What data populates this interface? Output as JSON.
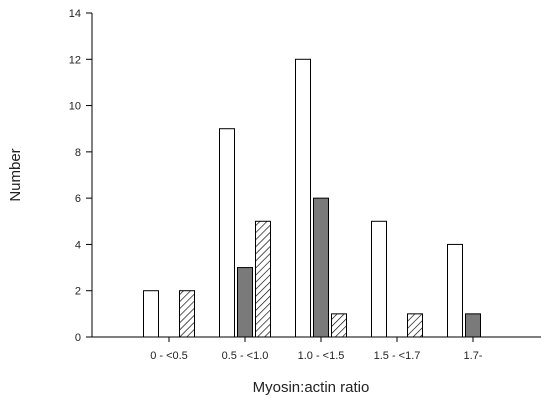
{
  "chart_data": {
    "type": "bar",
    "title": "",
    "xlabel": "Myosin:actin ratio",
    "ylabel": "Number",
    "categories": [
      "0 - <0.5",
      "0.5 - <1.0",
      "1.0 - <1.5",
      "1.5 - <1.7",
      "1.7-"
    ],
    "ylim": [
      0,
      14
    ],
    "yticks": [
      0,
      2,
      4,
      6,
      8,
      10,
      12,
      14
    ],
    "grid": false,
    "legend": "none",
    "series": [
      {
        "values": [
          2,
          9,
          12,
          5,
          4
        ],
        "fill": "white"
      },
      {
        "values": [
          0,
          3,
          6,
          0,
          1
        ],
        "fill": "dark-gray"
      },
      {
        "values": [
          2,
          5,
          1,
          1,
          0
        ],
        "fill": "diagonal-hatch"
      }
    ],
    "colors": {
      "white": "#ffffff",
      "dark_gray": "#7a7a7a",
      "outline": "#000000"
    }
  }
}
